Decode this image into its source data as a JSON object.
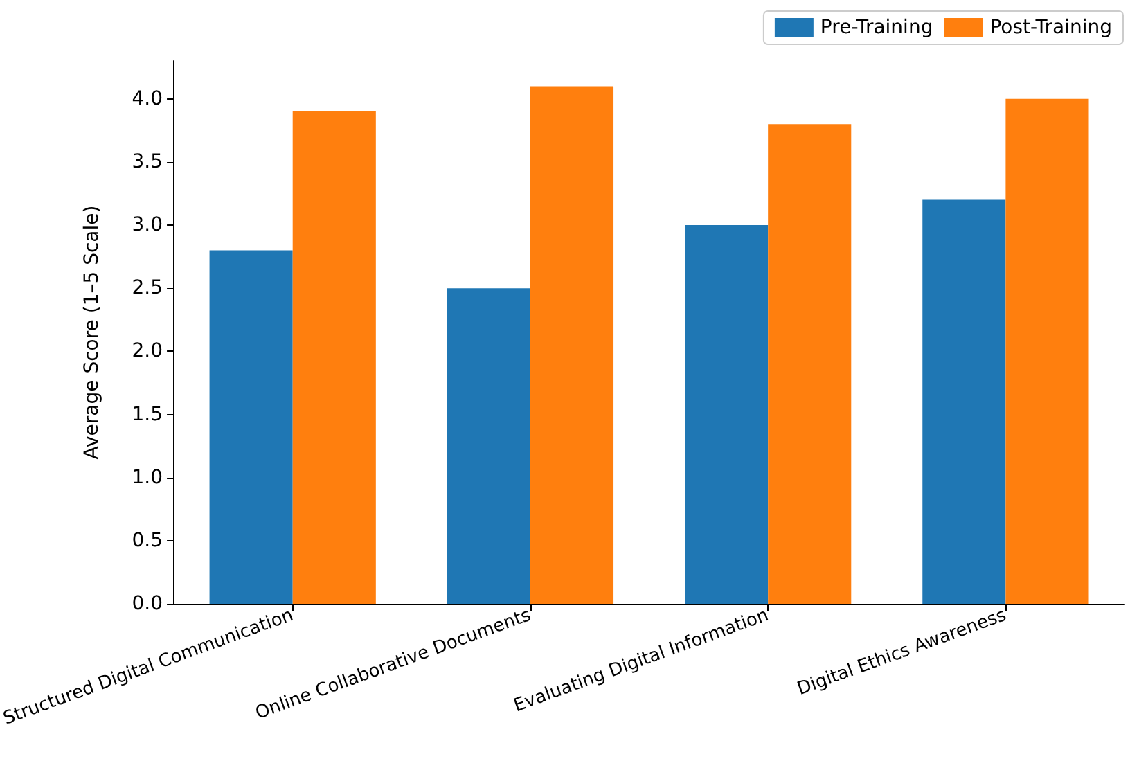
{
  "chart_data": {
    "type": "bar",
    "ylabel": "Average Score (1–5 Scale)",
    "categories": [
      "Structured Digital Communication",
      "Online Collaborative Documents",
      "Evaluating Digital Information",
      "Digital Ethics Awareness"
    ],
    "series": [
      {
        "name": "Pre-Training",
        "color": "#1f77b4",
        "values": [
          2.8,
          2.5,
          3.0,
          3.2
        ]
      },
      {
        "name": "Post-Training",
        "color": "#ff7f0e",
        "values": [
          3.9,
          4.1,
          3.8,
          4.0
        ]
      }
    ],
    "ylim": [
      0,
      4.3
    ],
    "yticks": [
      {
        "value": 0,
        "label": "0.0"
      },
      0.5,
      {
        "value": 1,
        "label": "1.0"
      },
      1.5,
      {
        "value": 2,
        "label": "2.0"
      },
      2.5,
      {
        "value": 3,
        "label": "3.0"
      },
      3.5,
      {
        "value": 4,
        "label": "4.0"
      }
    ],
    "grid": false,
    "legend": "top right"
  }
}
